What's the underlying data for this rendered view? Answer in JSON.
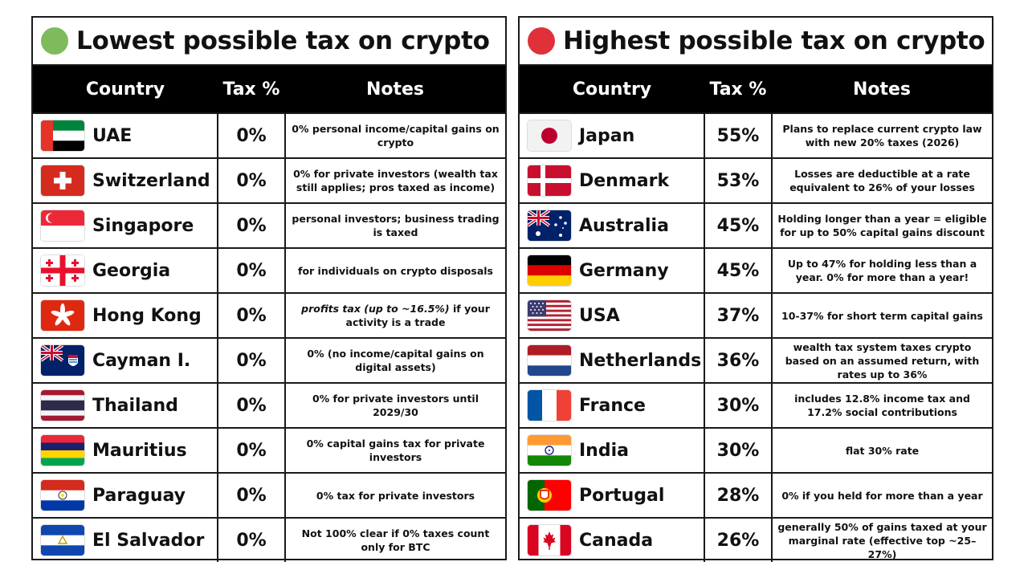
{
  "colors": {
    "lowest_dot": "#7dbb5c",
    "highest_dot": "#e0303a",
    "header_bg": "#000000"
  },
  "left": {
    "title": "Lowest possible tax on crypto",
    "headers": {
      "country": "Country",
      "tax": "Tax %",
      "notes": "Notes"
    },
    "rows": [
      {
        "country": "UAE",
        "flag": "uae-flag-icon",
        "tax": "0%",
        "note": "0% personal income/capital gains on crypto"
      },
      {
        "country": "Switzerland",
        "flag": "switzerland-flag-icon",
        "tax": "0%",
        "note": "0% for private investors (wealth tax still applies; pros taxed as income)"
      },
      {
        "country": "Singapore",
        "flag": "singapore-flag-icon",
        "tax": "0%",
        "note": "personal investors; business trading is taxed"
      },
      {
        "country": "Georgia",
        "flag": "georgia-flag-icon",
        "tax": "0%",
        "note": "for individuals on crypto disposals"
      },
      {
        "country": "Hong Kong",
        "flag": "hong-kong-flag-icon",
        "tax": "0%",
        "note_em": "profits tax (up to ~16.5%)",
        "note": " if your activity is a trade"
      },
      {
        "country": "Cayman I.",
        "flag": "cayman-flag-icon",
        "tax": "0%",
        "note": "0% (no income/capital gains on digital assets)"
      },
      {
        "country": "Thailand",
        "flag": "thailand-flag-icon",
        "tax": "0%",
        "note": "0% for private investors until 2029/30"
      },
      {
        "country": "Mauritius",
        "flag": "mauritius-flag-icon",
        "tax": "0%",
        "note": "0% capital gains tax for private investors"
      },
      {
        "country": "Paraguay",
        "flag": "paraguay-flag-icon",
        "tax": "0%",
        "note": "0% tax for private investors"
      },
      {
        "country": "El Salvador",
        "flag": "el-salvador-flag-icon",
        "tax": "0%",
        "note": "Not 100% clear if 0% taxes count only for BTC"
      }
    ]
  },
  "right": {
    "title": "Highest possible tax on crypto",
    "headers": {
      "country": "Country",
      "tax": "Tax %",
      "notes": "Notes"
    },
    "rows": [
      {
        "country": "Japan",
        "flag": "japan-flag-icon",
        "tax": "55%",
        "note": "Plans to replace current crypto law with new 20% taxes (2026)"
      },
      {
        "country": "Denmark",
        "flag": "denmark-flag-icon",
        "tax": "53%",
        "note": "Losses are deductible at a rate equivalent to 26% of your losses"
      },
      {
        "country": "Australia",
        "flag": "australia-flag-icon",
        "tax": "45%",
        "note": "Holding longer than a year = eligible for up to 50% capital gains discount"
      },
      {
        "country": "Germany",
        "flag": "germany-flag-icon",
        "tax": "45%",
        "note": "Up to 47% for holding less than a year. 0% for more than a year!"
      },
      {
        "country": "USA",
        "flag": "usa-flag-icon",
        "tax": "37%",
        "note": "10-37% for short term capital gains"
      },
      {
        "country": "Netherlands",
        "flag": "netherlands-flag-icon",
        "tax": "36%",
        "note": "wealth tax system taxes crypto based on an assumed return, with rates up to 36%"
      },
      {
        "country": "France",
        "flag": "france-flag-icon",
        "tax": "30%",
        "note": "includes 12.8% income tax and 17.2% social contributions"
      },
      {
        "country": "India",
        "flag": "india-flag-icon",
        "tax": "30%",
        "note": "flat 30% rate"
      },
      {
        "country": "Portugal",
        "flag": "portugal-flag-icon",
        "tax": "28%",
        "note": "0% if you held for more than a year"
      },
      {
        "country": "Canada",
        "flag": "canada-flag-icon",
        "tax": "26%",
        "note": "generally 50% of gains taxed at your marginal rate (effective top ~25–27%)"
      }
    ]
  }
}
